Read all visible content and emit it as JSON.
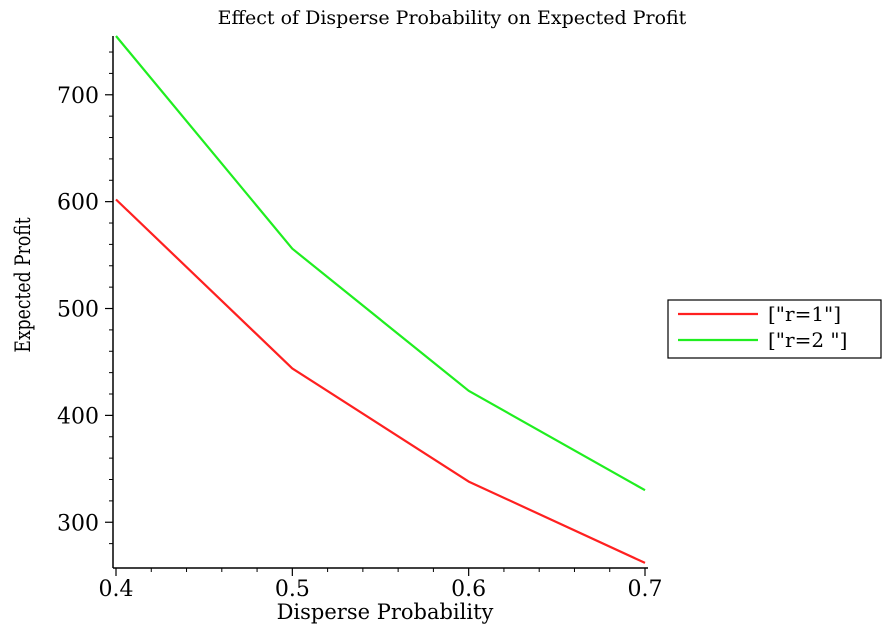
{
  "chart_data": {
    "type": "line",
    "title": "Effect of Disperse Probability on Expected Profit",
    "xlabel": "Disperse Probability",
    "ylabel": "Expected Profit",
    "xlim": [
      0.4,
      0.7
    ],
    "ylim": [
      260,
      755
    ],
    "x_ticks": [
      0.4,
      0.5,
      0.6,
      0.7
    ],
    "x_tick_labels": [
      "0.4",
      "0.5",
      "0.6",
      "0.7"
    ],
    "y_ticks": [
      300,
      400,
      500,
      600,
      700
    ],
    "y_tick_labels": [
      "300",
      "400",
      "500",
      "600",
      "700"
    ],
    "grid": false,
    "legend_position": "right",
    "x": [
      0.4,
      0.5,
      0.6,
      0.7
    ],
    "series": [
      {
        "name": "[\"r=1\"]",
        "color": "#ff2020",
        "values": [
          602,
          444,
          338,
          262
        ]
      },
      {
        "name": "[\"r=2 \"]",
        "color": "#20ee20",
        "values": [
          755,
          556,
          423,
          330
        ]
      }
    ]
  }
}
